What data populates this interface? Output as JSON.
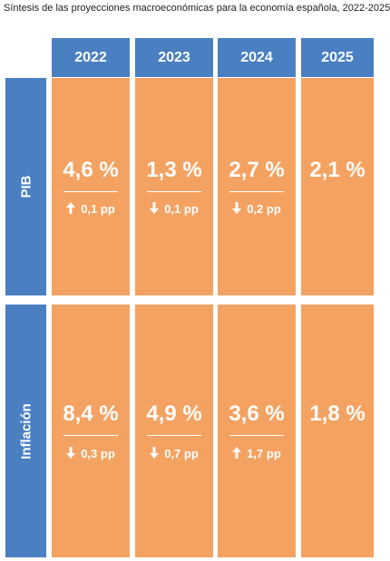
{
  "title": "Síntesis de las proyecciones macroeconómicas para la economía española, 2022-2025",
  "years": [
    "2022",
    "2023",
    "2024",
    "2025"
  ],
  "rows": [
    {
      "label": "PIB",
      "cells": [
        {
          "value": "4,6 %",
          "direction": "up",
          "change": "0,1 pp"
        },
        {
          "value": "1,3 %",
          "direction": "down",
          "change": "0,1 pp"
        },
        {
          "value": "2,7 %",
          "direction": "down",
          "change": "0,2 pp"
        },
        {
          "value": "2,1 %"
        }
      ]
    },
    {
      "label": "Inflación",
      "cells": [
        {
          "value": "8,4 %",
          "direction": "down",
          "change": "0,3 pp"
        },
        {
          "value": "4,9 %",
          "direction": "down",
          "change": "0,7 pp"
        },
        {
          "value": "3,6 %",
          "direction": "up",
          "change": "1,7 pp"
        },
        {
          "value": "1,8 %"
        }
      ]
    }
  ],
  "colors": {
    "header": "#4a7fc1",
    "cell": "#f4a262",
    "text": "#ffffff"
  }
}
